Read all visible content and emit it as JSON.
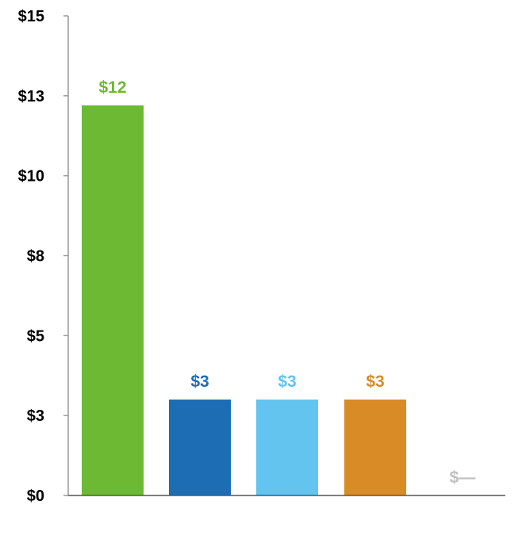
{
  "chart_data": {
    "type": "bar",
    "categories": [
      "",
      "",
      "",
      "",
      ""
    ],
    "values": [
      12.2,
      3,
      3,
      3,
      0
    ],
    "data_labels": [
      "$12",
      "$3",
      "$3",
      "$3",
      "$—"
    ],
    "colors": [
      "#6db934",
      "#1d6db5",
      "#63c4ef",
      "#d98b26",
      "#bfbfbf"
    ],
    "title": "",
    "xlabel": "",
    "ylabel": "",
    "ylim": [
      0,
      15
    ],
    "y_ticks": [
      0,
      2.5,
      5,
      7.5,
      10,
      12.5,
      15
    ],
    "y_tick_labels": [
      "$0",
      "$3",
      "$5",
      "$8",
      "$10",
      "$13",
      "$15"
    ],
    "grid": false,
    "legend": "none"
  }
}
